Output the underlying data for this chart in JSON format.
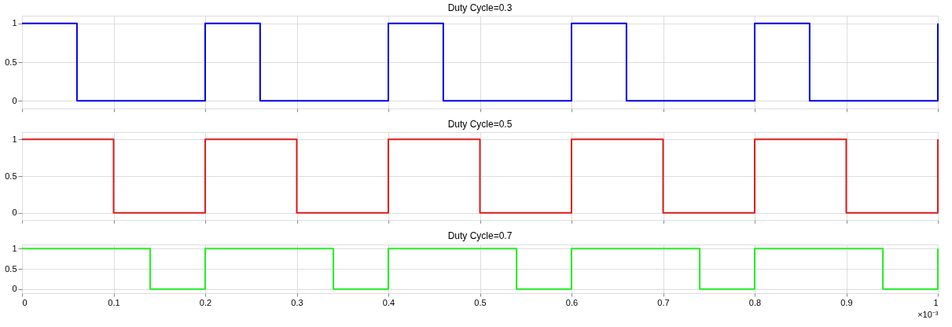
{
  "chart_data": [
    {
      "type": "step",
      "title": "Duty Cycle=0.3",
      "xlim": [
        0,
        1
      ],
      "xticks": [
        0,
        0.1,
        0.2,
        0.3,
        0.4,
        0.5,
        0.6,
        0.7,
        0.8,
        0.9,
        1
      ],
      "ylim": [
        -0.1,
        1.1
      ],
      "yticks": [
        0,
        0.5,
        1
      ],
      "grid": true,
      "tick_labels": "y",
      "series": [
        {
          "color": "#0000e6",
          "x": [
            0,
            0.06,
            0.2,
            0.26,
            0.4,
            0.46,
            0.6,
            0.66,
            0.8,
            0.86,
            1
          ],
          "values": [
            1,
            0,
            1,
            0,
            1,
            0,
            1,
            0,
            1,
            0,
            1
          ]
        }
      ]
    },
    {
      "type": "step",
      "title": "Duty Cycle=0.5",
      "xlim": [
        0,
        1
      ],
      "xticks": [
        0,
        0.1,
        0.2,
        0.3,
        0.4,
        0.5,
        0.6,
        0.7,
        0.8,
        0.9,
        1
      ],
      "ylim": [
        -0.1,
        1.1
      ],
      "yticks": [
        0,
        0.5,
        1
      ],
      "grid": true,
      "tick_labels": "y",
      "series": [
        {
          "color": "#e01b1b",
          "x": [
            0,
            0.1,
            0.2,
            0.3,
            0.4,
            0.5,
            0.6,
            0.7,
            0.8,
            0.9,
            1
          ],
          "values": [
            1,
            0,
            1,
            0,
            1,
            0,
            1,
            0,
            1,
            0,
            1
          ]
        }
      ]
    },
    {
      "type": "step",
      "title": "Duty Cycle=0.7",
      "xlim": [
        0,
        1
      ],
      "xticks": [
        0,
        0.1,
        0.2,
        0.3,
        0.4,
        0.5,
        0.6,
        0.7,
        0.8,
        0.9,
        1
      ],
      "ylim": [
        -0.1,
        1.1
      ],
      "yticks": [
        0,
        0.5,
        1
      ],
      "grid": true,
      "annotations": [
        "×10⁻³"
      ],
      "series": [
        {
          "color": "#22ee22",
          "x": [
            0,
            0.14,
            0.2,
            0.34,
            0.4,
            0.54,
            0.6,
            0.74,
            0.8,
            0.94,
            1
          ],
          "values": [
            1,
            0,
            1,
            0,
            1,
            0,
            1,
            0,
            1,
            0,
            1
          ]
        }
      ]
    }
  ]
}
